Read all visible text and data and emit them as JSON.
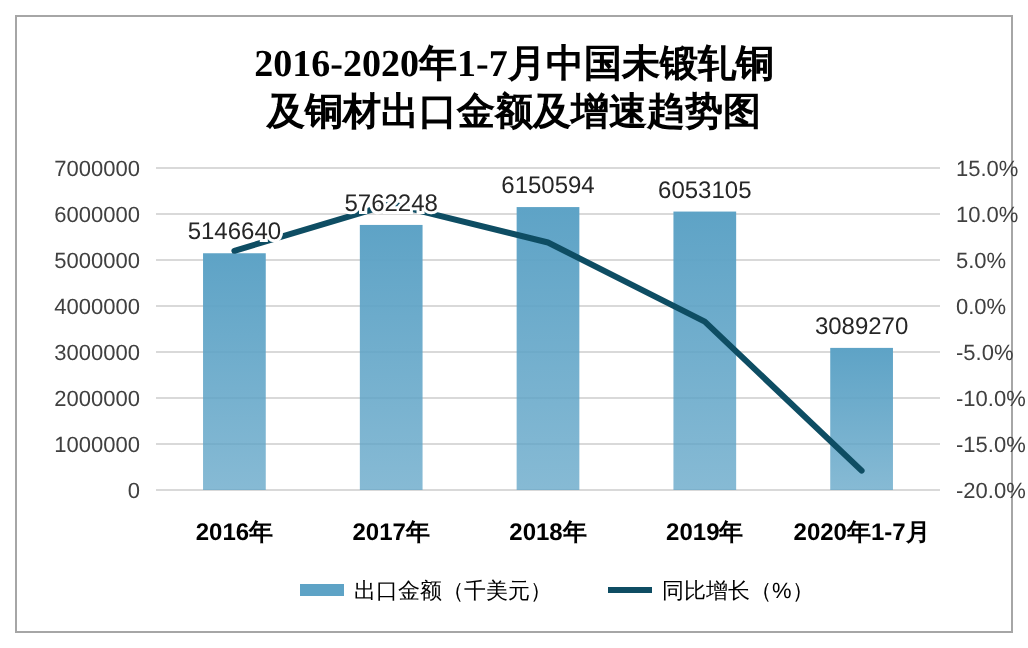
{
  "chart_data": {
    "type": "bar",
    "title": "2016-2020年1-7月中国未锻轧铜及铜材出口金额及增速趋势图",
    "categories": [
      "2016年",
      "2017年",
      "2018年",
      "2019年",
      "2020年1-7月"
    ],
    "series": [
      {
        "name": "出口金额（千美元）",
        "color": "#5ea3c6",
        "values": [
          5146640,
          5762248,
          6150594,
          6053105,
          3089270
        ],
        "value_labels": [
          "5146640",
          "5762248",
          "6150594",
          "6053105",
          "3089270"
        ]
      },
      {
        "name": "同比增长（%）",
        "type": "line",
        "axis": "y2",
        "color": "#0e4d63",
        "values": [
          6.0,
          11.1,
          6.9,
          -1.7,
          -17.9
        ]
      }
    ],
    "ylim": [
      0,
      7000000
    ],
    "yticks": [
      0,
      1000000,
      2000000,
      3000000,
      4000000,
      5000000,
      6000000,
      7000000
    ],
    "y2lim": [
      -20,
      15
    ],
    "y2ticks": [
      {
        "value": -20,
        "label": "-20.0%"
      },
      {
        "value": -15,
        "label": "-15.0%"
      },
      {
        "value": -10,
        "label": "-10.0%"
      },
      {
        "value": -5,
        "label": "-5.0%"
      },
      {
        "value": 0,
        "label": "0.0%"
      },
      {
        "value": 5,
        "label": "5.0%"
      },
      {
        "value": 10,
        "label": "10.0%"
      },
      {
        "value": 15,
        "label": "15.0%"
      }
    ],
    "grid": "y",
    "legend": "bottom",
    "marker": "none",
    "line_style": "solid"
  }
}
